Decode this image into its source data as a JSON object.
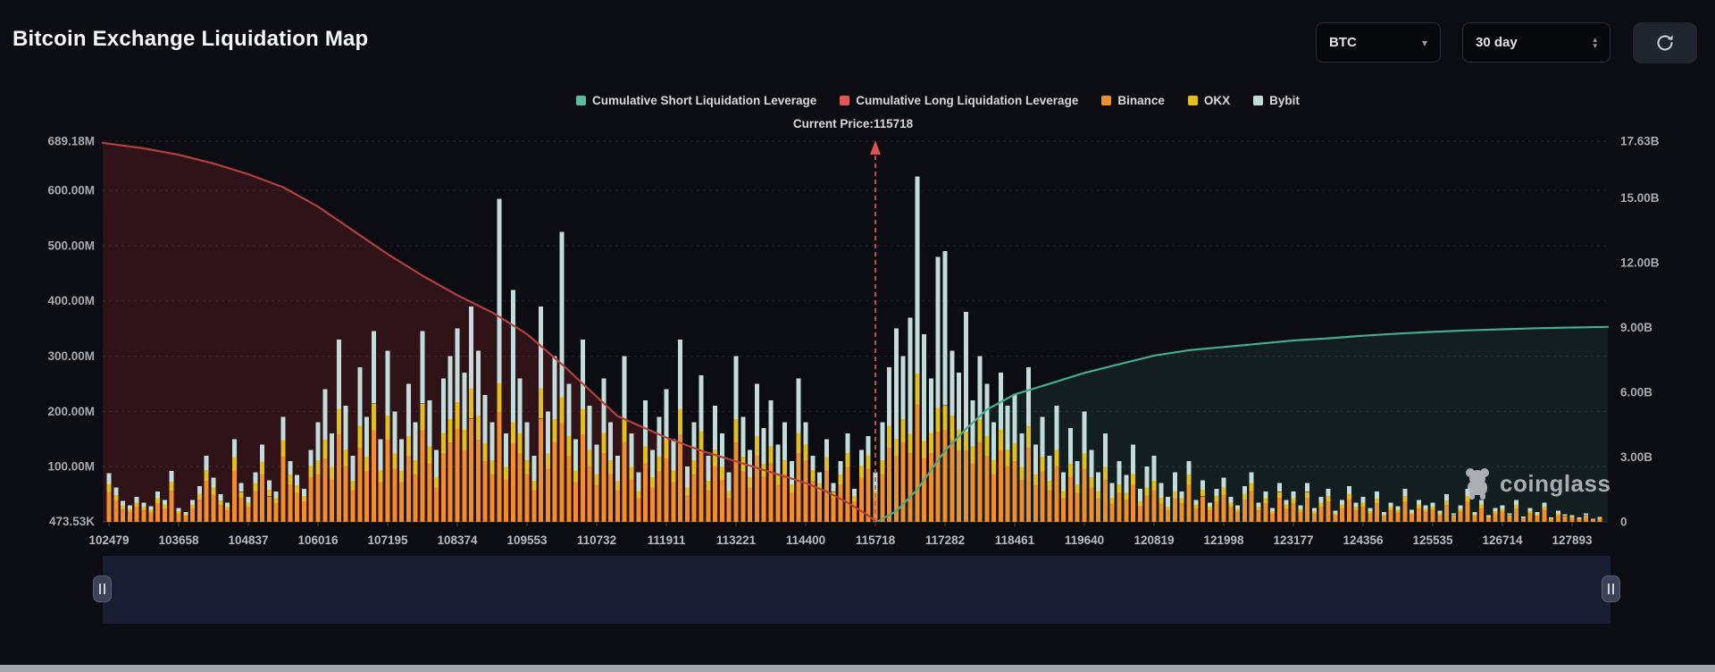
{
  "header": {
    "title": "Bitcoin Exchange Liquidation Map"
  },
  "controls": {
    "symbol_select": {
      "value": "BTC"
    },
    "period_select": {
      "value": "30 day"
    }
  },
  "legend": {
    "items": [
      {
        "label": "Cumulative Short Liquidation Leverage",
        "color": "#57bda2"
      },
      {
        "label": "Cumulative Long Liquidation Leverage",
        "color": "#e05752"
      },
      {
        "label": "Binance",
        "color": "#ef8e2c"
      },
      {
        "label": "OKX",
        "color": "#e2bf1d"
      },
      {
        "label": "Bybit",
        "color": "#c2dcd9"
      }
    ]
  },
  "annotation": {
    "current_price_label": "Current Price:115718",
    "current_price": 115718
  },
  "watermark": {
    "text": "coinglass"
  },
  "chart_data": {
    "type": "composite",
    "title": "Bitcoin Exchange Liquidation Map",
    "x_labels": [
      "102479",
      "103658",
      "104837",
      "106016",
      "107195",
      "108374",
      "109553",
      "110732",
      "111911",
      "113221",
      "114400",
      "115718",
      "117282",
      "118461",
      "119640",
      "120819",
      "121998",
      "123177",
      "124356",
      "125535",
      "126714",
      "127893"
    ],
    "left_axis": {
      "unit": "USD",
      "ticks": [
        {
          "label": "689.18M",
          "value_m": 689.18
        },
        {
          "label": "600.00M",
          "value_m": 600
        },
        {
          "label": "500.00M",
          "value_m": 500
        },
        {
          "label": "400.00M",
          "value_m": 400
        },
        {
          "label": "300.00M",
          "value_m": 300
        },
        {
          "label": "200.00M",
          "value_m": 200
        },
        {
          "label": "100.00M",
          "value_m": 100
        },
        {
          "label": "473.53K",
          "value_m": 0.47353
        }
      ],
      "max_m": 689.18
    },
    "right_axis": {
      "unit": "USD",
      "ticks": [
        {
          "label": "17.63B",
          "value_b": 17.63
        },
        {
          "label": "15.00B",
          "value_b": 15
        },
        {
          "label": "12.00B",
          "value_b": 12
        },
        {
          "label": "9.00B",
          "value_b": 9
        },
        {
          "label": "6.00B",
          "value_b": 6
        },
        {
          "label": "3.00B",
          "value_b": 3
        },
        {
          "label": "0",
          "value_b": 0
        }
      ],
      "max_b": 17.63
    },
    "bars": {
      "exchanges": [
        "Binance",
        "OKX",
        "Bybit"
      ],
      "colors": [
        "#ef8e2c",
        "#e2bf1d",
        "#c2dcd9"
      ],
      "unit": "millions_usd",
      "totals_m": [
        88,
        62,
        38,
        30,
        45,
        35,
        28,
        55,
        40,
        92,
        25,
        18,
        40,
        65,
        120,
        80,
        50,
        35,
        150,
        70,
        45,
        90,
        140,
        75,
        55,
        190,
        110,
        85,
        60,
        130,
        180,
        240,
        160,
        330,
        210,
        120,
        280,
        190,
        345,
        150,
        310,
        200,
        150,
        250,
        180,
        345,
        220,
        130,
        260,
        300,
        350,
        270,
        390,
        310,
        230,
        180,
        585,
        160,
        420,
        260,
        180,
        120,
        390,
        200,
        300,
        525,
        250,
        150,
        330,
        210,
        140,
        260,
        180,
        120,
        300,
        160,
        90,
        220,
        130,
        190,
        240,
        150,
        330,
        100,
        180,
        265,
        120,
        210,
        160,
        90,
        300,
        190,
        130,
        250,
        170,
        220,
        140,
        180,
        110,
        260,
        180,
        120,
        90,
        150,
        70,
        110,
        160,
        60,
        130,
        155,
        90,
        180,
        280,
        350,
        300,
        370,
        625,
        340,
        260,
        480,
        490,
        310,
        270,
        380,
        220,
        300,
        250,
        180,
        270,
        210,
        230,
        160,
        280,
        140,
        190,
        120,
        210,
        90,
        170,
        110,
        200,
        130,
        90,
        160,
        70,
        110,
        85,
        140,
        60,
        100,
        120,
        70,
        45,
        90,
        55,
        110,
        40,
        75,
        35,
        60,
        80,
        45,
        30,
        65,
        90,
        35,
        55,
        25,
        70,
        40,
        55,
        30,
        70,
        25,
        45,
        60,
        20,
        40,
        65,
        35,
        45,
        25,
        55,
        18,
        35,
        28,
        60,
        22,
        40,
        30,
        35,
        20,
        50,
        15,
        30,
        60,
        18,
        40,
        12,
        25,
        30,
        15,
        40,
        10,
        25,
        18,
        35,
        8,
        20,
        14,
        12,
        8,
        15,
        6,
        9
      ],
      "mix_codes": "aaaaaaaaaaaaaaaaaaaaaaaaaaaaaaddddddddddddddddddddddddddsdsddddddsddddddddddddddddddddddddddddddddddaaaaaaaaaadddsdsssdssddsddddddddddddddddddddddddddddddaaaaaaaaaaaaaaaaaaaaaaaaaaaaaaaaaaaaaaaaaaaaaaaaaaaaaaaaaaaaaaaaa",
      "mixes": {
        "a": [
          0.62,
          0.16,
          0.22
        ],
        "d": [
          0.48,
          0.14,
          0.38
        ],
        "s": [
          0.34,
          0.09,
          0.57
        ]
      }
    },
    "series": [
      {
        "name": "Cumulative Long Liquidation Leverage",
        "axis": "right",
        "color": "#b0413e",
        "fill": "rgba(150,40,46,0.26)",
        "points_idx_b": [
          [
            -0.09,
            17.55
          ],
          [
            0.5,
            17.3
          ],
          [
            1,
            17.0
          ],
          [
            1.5,
            16.6
          ],
          [
            2,
            16.1
          ],
          [
            2.5,
            15.5
          ],
          [
            3,
            14.6
          ],
          [
            3.5,
            13.5
          ],
          [
            4,
            12.4
          ],
          [
            4.5,
            11.4
          ],
          [
            5,
            10.5
          ],
          [
            5.5,
            9.7
          ],
          [
            6,
            8.7
          ],
          [
            6.5,
            7.3
          ],
          [
            7,
            5.8
          ],
          [
            7.3,
            4.9
          ],
          [
            8,
            3.9
          ],
          [
            8.5,
            3.3
          ],
          [
            9,
            2.8
          ],
          [
            9.5,
            2.3
          ],
          [
            10,
            1.8
          ],
          [
            10.3,
            1.4
          ],
          [
            10.6,
            0.9
          ],
          [
            10.85,
            0.4
          ],
          [
            11,
            0.05
          ]
        ]
      },
      {
        "name": "Cumulative Short Liquidation Leverage",
        "axis": "right",
        "color": "#46ab93",
        "fill": "rgba(70,160,140,0.12)",
        "points_idx_b": [
          [
            11.05,
            0.05
          ],
          [
            11.3,
            0.5
          ],
          [
            11.6,
            1.5
          ],
          [
            12,
            3.3
          ],
          [
            12.3,
            4.3
          ],
          [
            12.6,
            5.2
          ],
          [
            13,
            5.9
          ],
          [
            13.5,
            6.4
          ],
          [
            14,
            6.9
          ],
          [
            14.5,
            7.3
          ],
          [
            15,
            7.7
          ],
          [
            15.5,
            7.95
          ],
          [
            16,
            8.1
          ],
          [
            16.5,
            8.25
          ],
          [
            17,
            8.4
          ],
          [
            17.5,
            8.5
          ],
          [
            18,
            8.62
          ],
          [
            18.5,
            8.72
          ],
          [
            19,
            8.8
          ],
          [
            19.5,
            8.87
          ],
          [
            20,
            8.92
          ],
          [
            20.5,
            8.97
          ],
          [
            21,
            9.0
          ],
          [
            21.52,
            9.03
          ]
        ]
      }
    ],
    "current_price_index": 11,
    "current_price_line_color": "#d9534f",
    "grid_color": "rgba(255,255,255,0.09)"
  }
}
